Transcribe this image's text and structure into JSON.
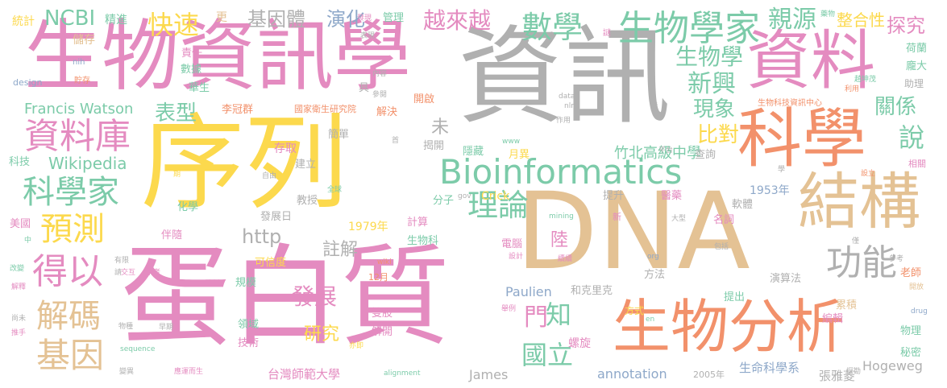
{
  "colors": {
    "pink": "#e48bc0",
    "gray": "#b0b0b0",
    "yellow": "#fcd94d",
    "tan": "#e4c294",
    "green": "#7ccba9",
    "orange": "#f2916b",
    "blue": "#8ea8c9",
    "olive": "#b5cf5e"
  },
  "words": [
    {
      "text": "生物資訊學",
      "c": "pink"
    },
    {
      "text": "資訊",
      "c": "gray"
    },
    {
      "text": "序列",
      "c": "yellow"
    },
    {
      "text": "DNA",
      "c": "tan"
    },
    {
      "text": "蛋白質",
      "c": "pink"
    },
    {
      "text": "資料",
      "c": "pink"
    },
    {
      "text": "科學",
      "c": "orange"
    },
    {
      "text": "生物分析",
      "c": "orange"
    },
    {
      "text": "結構",
      "c": "tan"
    },
    {
      "text": "Bioinformatics",
      "c": "green"
    },
    {
      "text": "資料庫",
      "c": "pink"
    },
    {
      "text": "生物學家",
      "c": "green"
    },
    {
      "text": "數學",
      "c": "green"
    },
    {
      "text": "科學家",
      "c": "green"
    },
    {
      "text": "得以",
      "c": "pink"
    },
    {
      "text": "基因",
      "c": "tan"
    },
    {
      "text": "解碼",
      "c": "tan"
    },
    {
      "text": "預測",
      "c": "yellow"
    },
    {
      "text": "功能",
      "c": "gray"
    },
    {
      "text": "理論",
      "c": "green"
    },
    {
      "text": "快速",
      "c": "yellow"
    },
    {
      "text": "越來越",
      "c": "pink"
    },
    {
      "text": "發展",
      "c": "pink"
    },
    {
      "text": "國立",
      "c": "green"
    },
    {
      "text": "生物學",
      "c": "green"
    },
    {
      "text": "新興",
      "c": "green"
    },
    {
      "text": "親源",
      "c": "green"
    },
    {
      "text": "探究",
      "c": "pink"
    },
    {
      "text": "整合性",
      "c": "yellow"
    },
    {
      "text": "NCBI",
      "c": "green"
    },
    {
      "text": "基因體",
      "c": "gray"
    },
    {
      "text": "演化",
      "c": "blue"
    },
    {
      "text": "表型",
      "c": "green"
    },
    {
      "text": "現象",
      "c": "green"
    },
    {
      "text": "比對",
      "c": "yellow"
    },
    {
      "text": "關係",
      "c": "green"
    },
    {
      "text": "說",
      "c": "green"
    },
    {
      "text": "門",
      "c": "pink"
    },
    {
      "text": "知",
      "c": "green"
    },
    {
      "text": "陸",
      "c": "pink"
    },
    {
      "text": "研究",
      "c": "yellow"
    },
    {
      "text": "Wikipedia",
      "c": "green"
    },
    {
      "text": "http",
      "c": "gray"
    },
    {
      "text": "未",
      "c": "gray"
    },
    {
      "text": "註解",
      "c": "gray"
    },
    {
      "text": "Francis Watson",
      "c": "green"
    },
    {
      "text": "竹北高級中學",
      "c": "green"
    },
    {
      "text": "Paulien",
      "c": "blue"
    },
    {
      "text": "James",
      "c": "gray"
    },
    {
      "text": "Hogeweg",
      "c": "gray"
    },
    {
      "text": "annotation",
      "c": "blue"
    },
    {
      "text": "台灣師範大學",
      "c": "pink"
    },
    {
      "text": "生命科學系",
      "c": "blue"
    },
    {
      "text": "張雅菱",
      "c": "gray"
    },
    {
      "text": "李冠群",
      "c": "orange"
    },
    {
      "text": "國家衛生研究院",
      "c": "orange"
    },
    {
      "text": "生物科技資訊中心",
      "c": "orange"
    },
    {
      "text": "1953年",
      "c": "blue"
    },
    {
      "text": "1979年",
      "c": "yellow"
    },
    {
      "text": "2005年",
      "c": "gray"
    },
    {
      "text": "12月",
      "c": "orange"
    },
    {
      "text": "Crick",
      "c": "yellow"
    },
    {
      "text": "統計",
      "c": "yellow"
    },
    {
      "text": "精進",
      "c": "green"
    },
    {
      "text": "儲存",
      "c": "tan"
    },
    {
      "text": "nih",
      "c": "blue"
    },
    {
      "text": "design",
      "c": "blue"
    },
    {
      "text": "貯存",
      "c": "orange"
    },
    {
      "text": "更",
      "c": "tan"
    },
    {
      "text": "責任",
      "c": "pink"
    },
    {
      "text": "數據",
      "c": "green"
    },
    {
      "text": "華生",
      "c": "green"
    },
    {
      "text": "發現",
      "c": "pink"
    },
    {
      "text": "表現",
      "c": "gray"
    },
    {
      "text": "管理",
      "c": "green"
    },
    {
      "text": "內容",
      "c": "gray"
    },
    {
      "text": "參閱",
      "c": "gray"
    },
    {
      "text": "解決",
      "c": "orange"
    },
    {
      "text": "開啟",
      "c": "orange"
    },
    {
      "text": "具",
      "c": "gray"
    },
    {
      "text": "揭開",
      "c": "gray"
    },
    {
      "text": "隱藏",
      "c": "green"
    },
    {
      "text": "月異",
      "c": "yellow"
    },
    {
      "text": "存取",
      "c": "pink"
    },
    {
      "text": "建立",
      "c": "gray"
    },
    {
      "text": "簡單",
      "c": "gray"
    },
    {
      "text": "教授",
      "c": "gray"
    },
    {
      "text": "化學",
      "c": "green"
    },
    {
      "text": "伴隨",
      "c": "pink"
    },
    {
      "text": "發展日",
      "c": "gray"
    },
    {
      "text": "規模",
      "c": "green"
    },
    {
      "text": "可信度",
      "c": "yellow"
    },
    {
      "text": "領域",
      "c": "green"
    },
    {
      "text": "技術",
      "c": "pink"
    },
    {
      "text": "雙股",
      "c": "pink"
    },
    {
      "text": "解開",
      "c": "pink"
    },
    {
      "text": "螺旋",
      "c": "pink"
    },
    {
      "text": "方法",
      "c": "gray"
    },
    {
      "text": "方式",
      "c": "yellow"
    },
    {
      "text": "和克里克",
      "c": "gray"
    },
    {
      "text": "演算法",
      "c": "gray"
    },
    {
      "text": "提出",
      "c": "green"
    },
    {
      "text": "累積",
      "c": "tan"
    },
    {
      "text": "編輯",
      "c": "pink"
    },
    {
      "text": "物理",
      "c": "green"
    },
    {
      "text": "秘密",
      "c": "green"
    },
    {
      "text": "老師",
      "c": "orange"
    },
    {
      "text": "開放",
      "c": "tan"
    },
    {
      "text": "drug",
      "c": "blue"
    },
    {
      "text": "參考",
      "c": "gray"
    },
    {
      "text": "僅",
      "c": "gray"
    },
    {
      "text": "包括",
      "c": "gray"
    },
    {
      "text": "名詞",
      "c": "pink"
    },
    {
      "text": "軟體",
      "c": "gray"
    },
    {
      "text": "醫藥",
      "c": "pink"
    },
    {
      "text": "提升",
      "c": "gray"
    },
    {
      "text": "查詢",
      "c": "gray"
    },
    {
      "text": "大型",
      "c": "gray"
    },
    {
      "text": "新",
      "c": "pink"
    },
    {
      "text": "電腦",
      "c": "pink"
    },
    {
      "text": "計算",
      "c": "pink"
    },
    {
      "text": "分子",
      "c": "green"
    },
    {
      "text": "生物科",
      "c": "green"
    },
    {
      "text": "科技",
      "c": "green"
    },
    {
      "text": "美國",
      "c": "pink"
    },
    {
      "text": "中",
      "c": "green"
    },
    {
      "text": "改變",
      "c": "green"
    },
    {
      "text": "解釋",
      "c": "pink"
    },
    {
      "text": "尚未",
      "c": "gray"
    },
    {
      "text": "推手",
      "c": "pink"
    },
    {
      "text": "變異",
      "c": "gray"
    },
    {
      "text": "物種",
      "c": "gray"
    },
    {
      "text": "早期",
      "c": "gray"
    },
    {
      "text": "sequence",
      "c": "green"
    },
    {
      "text": "應運而生",
      "c": "pink"
    },
    {
      "text": "alignment",
      "c": "green"
    },
    {
      "text": "亦即",
      "c": "yellow"
    },
    {
      "text": "學者",
      "c": "pink"
    },
    {
      "text": "交互",
      "c": "pink"
    },
    {
      "text": "有限",
      "c": "gray"
    },
    {
      "text": "請",
      "c": "gray"
    },
    {
      "text": "期",
      "c": "yellow"
    },
    {
      "text": "自由",
      "c": "gray"
    },
    {
      "text": "全球",
      "c": "green"
    },
    {
      "text": "www",
      "c": "green"
    },
    {
      "text": "gov",
      "c": "gray"
    },
    {
      "text": "data",
      "c": "gray"
    },
    {
      "text": "nlm",
      "c": "gray"
    },
    {
      "text": "作用",
      "c": "gray"
    },
    {
      "text": "時",
      "c": "gray"
    },
    {
      "text": "謎",
      "c": "pink"
    },
    {
      "text": "藥物",
      "c": "green"
    },
    {
      "text": "利用",
      "c": "orange"
    },
    {
      "text": "趙坤茂",
      "c": "green"
    },
    {
      "text": "荷蘭",
      "c": "green"
    },
    {
      "text": "龐大",
      "c": "green"
    },
    {
      "text": "助理",
      "c": "gray"
    },
    {
      "text": "學",
      "c": "gray"
    },
    {
      "text": "設立",
      "c": "orange"
    },
    {
      "text": "相關",
      "c": "pink"
    },
    {
      "text": "平台",
      "c": "gray"
    },
    {
      "text": "舉例",
      "c": "pink"
    },
    {
      "text": "en",
      "c": "green"
    },
    {
      "text": "mining",
      "c": "green"
    },
    {
      "text": "org",
      "c": "blue"
    },
    {
      "text": "wiki",
      "c": "orange"
    },
    {
      "text": "設計",
      "c": "pink"
    },
    {
      "text": "續續",
      "c": "pink"
    },
    {
      "text": "首",
      "c": "gray"
    },
    {
      "text": "探勘",
      "c": "gray"
    }
  ]
}
